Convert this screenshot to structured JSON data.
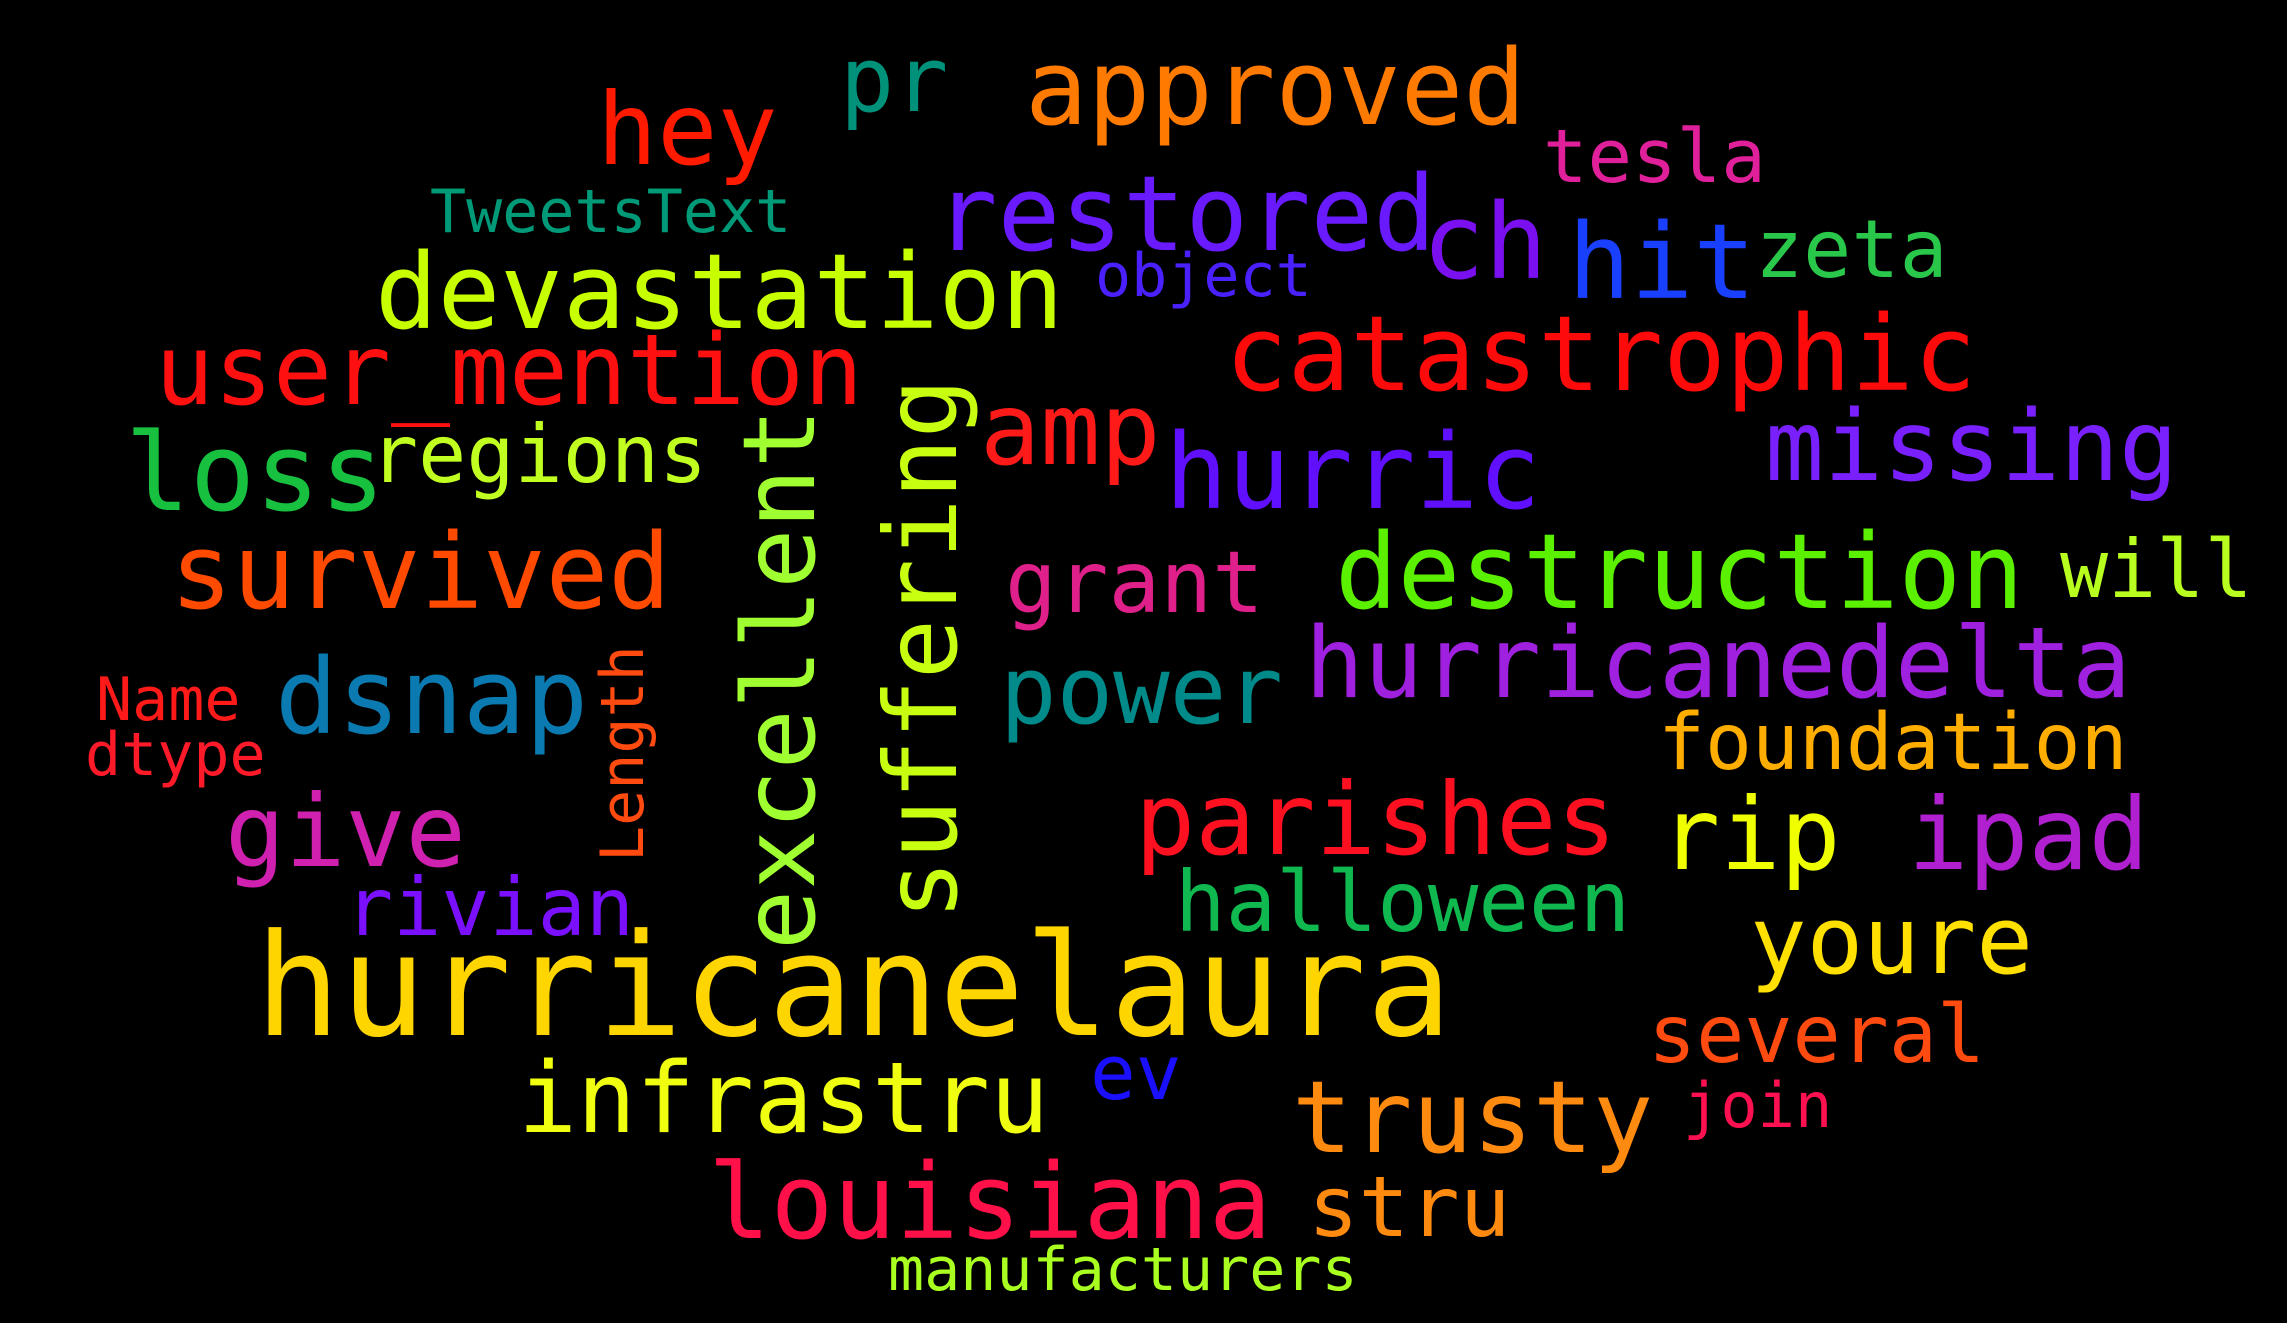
{
  "wordcloud": {
    "words": [
      {
        "text": "hurricanelaura",
        "color": "#ffd500",
        "orientation": "horizontal"
      },
      {
        "text": "approved",
        "color": "#ff7a00",
        "orientation": "horizontal"
      },
      {
        "text": "pr",
        "color": "#00917a",
        "orientation": "horizontal"
      },
      {
        "text": "hey",
        "color": "#ff1a00",
        "orientation": "horizontal"
      },
      {
        "text": "tesla",
        "color": "#e0209a",
        "orientation": "horizontal"
      },
      {
        "text": "TweetsText",
        "color": "#009a78",
        "orientation": "horizontal"
      },
      {
        "text": "restored",
        "color": "#6a1aff",
        "orientation": "horizontal"
      },
      {
        "text": "ch",
        "color": "#7a10f0",
        "orientation": "horizontal"
      },
      {
        "text": "hit",
        "color": "#1a40ff",
        "orientation": "horizontal"
      },
      {
        "text": "zeta",
        "color": "#2ac84a",
        "orientation": "horizontal"
      },
      {
        "text": "object",
        "color": "#4a20ff",
        "orientation": "horizontal"
      },
      {
        "text": "devastation",
        "color": "#c8ff00",
        "orientation": "horizontal"
      },
      {
        "text": "catastrophic",
        "color": "#ff0a0a",
        "orientation": "horizontal"
      },
      {
        "text": "user_mention",
        "color": "#ff1010",
        "orientation": "horizontal"
      },
      {
        "text": "amp",
        "color": "#ff1a1a",
        "orientation": "horizontal"
      },
      {
        "text": "missing",
        "color": "#7a20ff",
        "orientation": "horizontal"
      },
      {
        "text": "loss",
        "color": "#18c040",
        "orientation": "horizontal"
      },
      {
        "text": "regions",
        "color": "#c0ff20",
        "orientation": "horizontal"
      },
      {
        "text": "hurric",
        "color": "#6010ff",
        "orientation": "horizontal"
      },
      {
        "text": "survived",
        "color": "#ff4a00",
        "orientation": "horizontal"
      },
      {
        "text": "destruction",
        "color": "#5af000",
        "orientation": "horizontal"
      },
      {
        "text": "will",
        "color": "#b8ff20",
        "orientation": "horizontal"
      },
      {
        "text": "grant",
        "color": "#e0208a",
        "orientation": "horizontal"
      },
      {
        "text": "hurricanedelta",
        "color": "#a020e0",
        "orientation": "horizontal"
      },
      {
        "text": "Name",
        "color": "#ff1a1a",
        "orientation": "horizontal"
      },
      {
        "text": "dtype",
        "color": "#ff1a2a",
        "orientation": "horizontal"
      },
      {
        "text": "dsnap",
        "color": "#0a7ab0",
        "orientation": "horizontal"
      },
      {
        "text": "power",
        "color": "#008a8a",
        "orientation": "horizontal"
      },
      {
        "text": "foundation",
        "color": "#ffae00",
        "orientation": "horizontal"
      },
      {
        "text": "give",
        "color": "#d020b0",
        "orientation": "horizontal"
      },
      {
        "text": "parishes",
        "color": "#ff1020",
        "orientation": "horizontal"
      },
      {
        "text": "rip",
        "color": "#f0ff00",
        "orientation": "horizontal"
      },
      {
        "text": "ipad",
        "color": "#b020d0",
        "orientation": "horizontal"
      },
      {
        "text": "rivian",
        "color": "#7a10ff",
        "orientation": "horizontal"
      },
      {
        "text": "halloween",
        "color": "#10b850",
        "orientation": "horizontal"
      },
      {
        "text": "youre",
        "color": "#ffe000",
        "orientation": "horizontal"
      },
      {
        "text": "several",
        "color": "#ff4a10",
        "orientation": "horizontal"
      },
      {
        "text": "infrastru",
        "color": "#f0ff10",
        "orientation": "horizontal"
      },
      {
        "text": "ev",
        "color": "#1a10ff",
        "orientation": "horizontal"
      },
      {
        "text": "trusty",
        "color": "#ff8a10",
        "orientation": "horizontal"
      },
      {
        "text": "join",
        "color": "#ff1050",
        "orientation": "horizontal"
      },
      {
        "text": "louisiana",
        "color": "#ff1048",
        "orientation": "horizontal"
      },
      {
        "text": "stru",
        "color": "#ff8a10",
        "orientation": "horizontal"
      },
      {
        "text": "manufacturers",
        "color": "#a8ff20",
        "orientation": "horizontal"
      },
      {
        "text": "suffering",
        "color": "#c8ff10",
        "orientation": "vertical"
      },
      {
        "text": "excellent",
        "color": "#a0ff30",
        "orientation": "vertical"
      },
      {
        "text": "Length",
        "color": "#ff4a10",
        "orientation": "vertical"
      }
    ]
  }
}
